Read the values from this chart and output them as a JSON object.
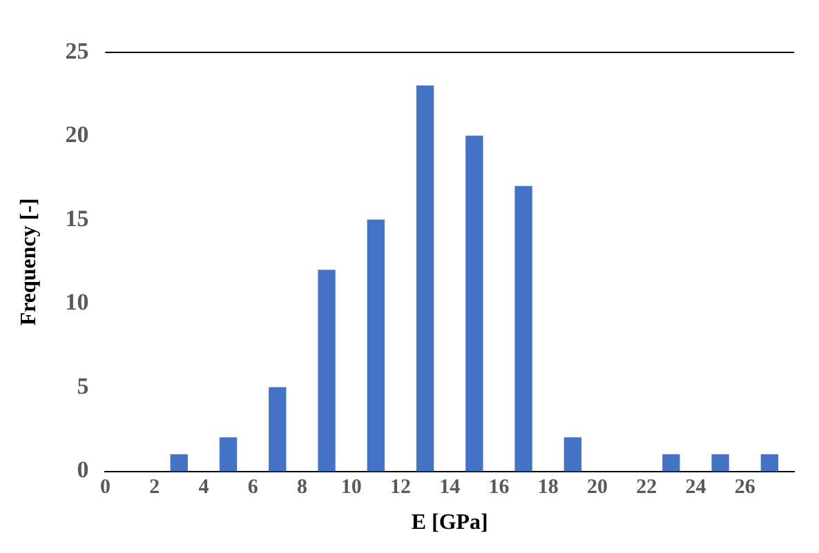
{
  "chart_data": {
    "type": "bar",
    "xlabel": "E [GPa]",
    "ylabel": "Frequency [-]",
    "x": [
      3,
      5,
      7,
      9,
      11,
      13,
      15,
      17,
      19,
      23,
      25,
      27
    ],
    "values": [
      1,
      2,
      5,
      12,
      15,
      23,
      20,
      17,
      2,
      1,
      1,
      1
    ],
    "color": "#4472c4",
    "xlim": [
      0,
      28
    ],
    "xticks": [
      0,
      2,
      4,
      6,
      8,
      10,
      12,
      14,
      16,
      18,
      20,
      22,
      24,
      26
    ],
    "ylim": [
      0,
      25
    ],
    "yticks": [
      0,
      5,
      10,
      15,
      20,
      25
    ],
    "grid": false,
    "legend": false
  }
}
